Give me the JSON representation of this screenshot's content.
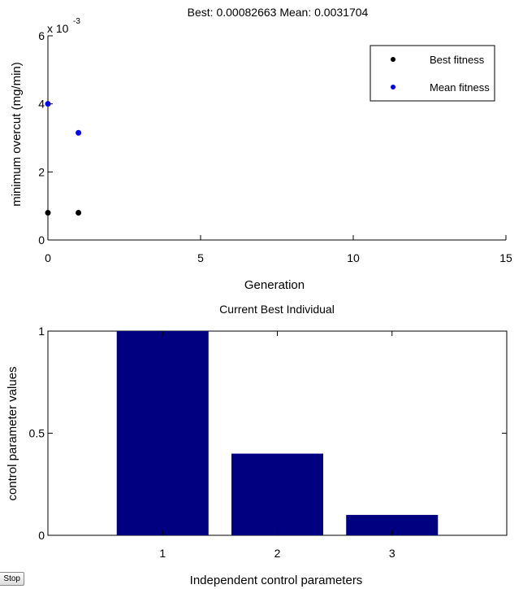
{
  "stop_button_label": "Stop",
  "chart_data": [
    {
      "type": "scatter",
      "title": "Best: 0.00082663 Mean: 0.0031704",
      "xlabel": "Generation",
      "ylabel": "minimum overcut (mg/min)",
      "y_exponent_label": "x 10",
      "y_exponent_power": "-3",
      "xlim": [
        0,
        15
      ],
      "ylim": [
        0,
        6
      ],
      "x_tick_labels": [
        "0",
        "5",
        "10",
        "15"
      ],
      "y_tick_labels": [
        "0",
        "2",
        "4",
        "6"
      ],
      "legend_position": "top-right",
      "series": [
        {
          "name": "Best fitness",
          "color": "#000000",
          "x": [
            0,
            1
          ],
          "y": [
            0.8,
            0.8
          ]
        },
        {
          "name": "Mean fitness",
          "color": "#0000ff",
          "x": [
            0,
            1
          ],
          "y": [
            4.0,
            3.15
          ]
        }
      ]
    },
    {
      "type": "bar",
      "title": "Current Best Individual",
      "xlabel": "Independent control parameters",
      "ylabel": "control parameter values",
      "categories": [
        "1",
        "2",
        "3"
      ],
      "values": [
        1.0,
        0.4,
        0.1
      ],
      "ylim": [
        0,
        1
      ],
      "xlim": [
        0,
        4
      ],
      "y_tick_labels": [
        "0",
        "0.5",
        "1"
      ],
      "bar_color": "#000080"
    }
  ]
}
